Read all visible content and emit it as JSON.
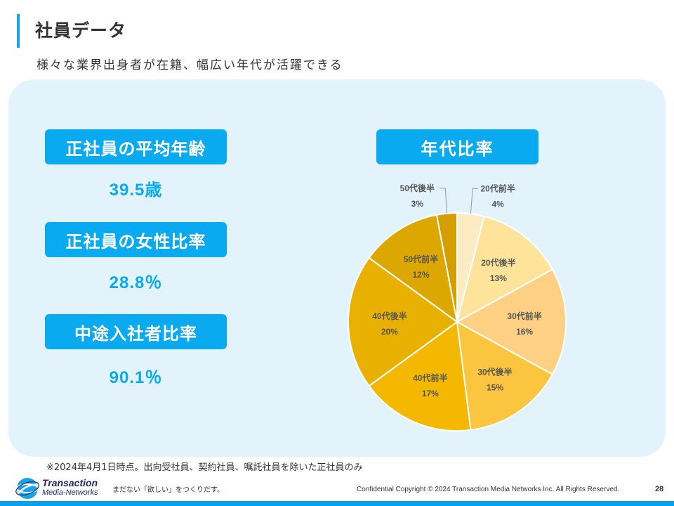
{
  "header": {
    "title": "社員データ",
    "subtitle": "様々な業界出身者が在籍、幅広い年代が活躍できる"
  },
  "stats": [
    {
      "label": "正社員の平均年齢",
      "value": "39.5歳"
    },
    {
      "label": "正社員の女性比率",
      "value": "28.8％"
    },
    {
      "label": "中途入社者比率",
      "value": "90.1％"
    }
  ],
  "chart_data": {
    "type": "pie",
    "title": "年代比率",
    "categories": [
      "20代前半",
      "20代後半",
      "30代前半",
      "30代後半",
      "40代前半",
      "40代後半",
      "50代前半",
      "50代後半"
    ],
    "values": [
      4,
      13,
      16,
      15,
      17,
      20,
      12,
      3
    ],
    "labels": [
      "4%",
      "13%",
      "16%",
      "15%",
      "17%",
      "20%",
      "12%",
      "3%"
    ],
    "colors": [
      "#fdebc4",
      "#fde49a",
      "#fdd084",
      "#fbc540",
      "#f5b800",
      "#e8b000",
      "#dca800",
      "#d49e00"
    ]
  },
  "footer": {
    "footnote": "※2024年4月1日時点。出向受社員、契約社員、嘱託社員を除いた正社員のみ",
    "logo_line1": "Transaction",
    "logo_line2": "Media-Networks",
    "tagline": "まだない「欲しい」をつくりだす。",
    "copyright": "Confidential  Copyright © 2024 Transaction Media Networks Inc. All Rights Reserved.",
    "page_number": "28"
  },
  "colors": {
    "accent": "#0aaaf0",
    "panel": "#e3f3fc"
  }
}
